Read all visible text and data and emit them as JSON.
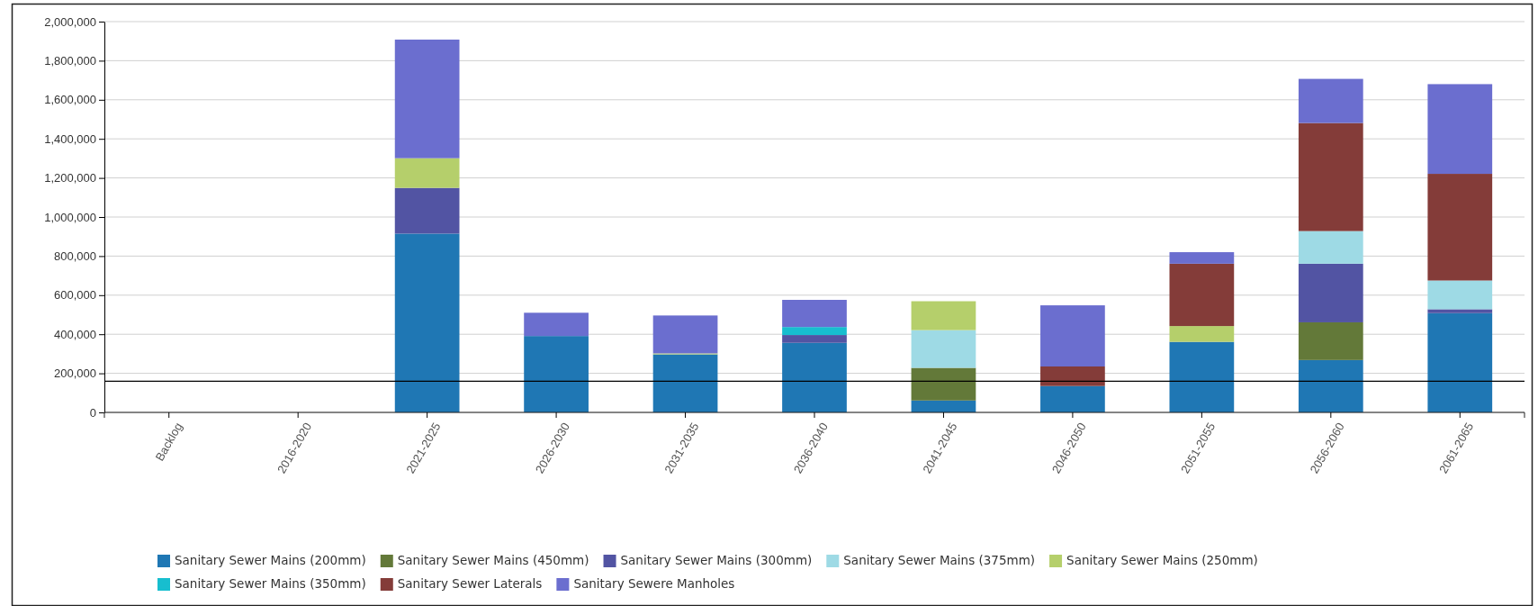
{
  "chart_data": {
    "type": "bar",
    "stacked": true,
    "categories": [
      "Backlog",
      "2016-2020",
      "2021-2025",
      "2026-2030",
      "2031-2035",
      "2036-2040",
      "2041-2045",
      "2046-2050",
      "2051-2055",
      "2056-2060",
      "2061-2065"
    ],
    "series": [
      {
        "name": "Sanitary Sewer Mains (200mm)",
        "color": "#1f77b4",
        "values": [
          0,
          0,
          915000,
          391000,
          297000,
          356000,
          61000,
          135000,
          361000,
          268000,
          508000
        ]
      },
      {
        "name": "Sanitary Sewer Mains (450mm)",
        "color": "#637939",
        "values": [
          0,
          0,
          0,
          0,
          0,
          0,
          167000,
          0,
          0,
          193000,
          0
        ]
      },
      {
        "name": "Sanitary Sewer Mains (300mm)",
        "color": "#5254a3",
        "values": [
          0,
          0,
          234000,
          0,
          0,
          40000,
          0,
          0,
          0,
          300000,
          20000
        ]
      },
      {
        "name": "Sanitary Sewer Mains (375mm)",
        "color": "#9edae5",
        "values": [
          0,
          0,
          0,
          0,
          0,
          0,
          193000,
          0,
          0,
          167000,
          147000
        ]
      },
      {
        "name": "Sanitary Sewer Mains (250mm)",
        "color": "#b5cf6b",
        "values": [
          0,
          0,
          152000,
          0,
          5000,
          0,
          148000,
          0,
          81000,
          0,
          0
        ]
      },
      {
        "name": "Sanitary Sewer Mains (350mm)",
        "color": "#17becf",
        "values": [
          0,
          0,
          0,
          0,
          0,
          41000,
          0,
          0,
          0,
          0,
          0
        ]
      },
      {
        "name": "Sanitary Sewer Laterals",
        "color": "#843c39",
        "values": [
          0,
          0,
          0,
          0,
          0,
          0,
          0,
          100000,
          319000,
          553000,
          546000
        ]
      },
      {
        "name": "Sanitary Sewere Manholes",
        "color": "#6b6ecf",
        "values": [
          0,
          0,
          607000,
          119000,
          194000,
          139000,
          0,
          313000,
          59000,
          226000,
          459000
        ]
      }
    ],
    "ylim": [
      0,
      2000000
    ],
    "yticks": [
      {
        "value": 0,
        "label": "0"
      },
      {
        "value": 200000,
        "label": "200,000"
      },
      {
        "value": 400000,
        "label": "400,000"
      },
      {
        "value": 600000,
        "label": "600,000"
      },
      {
        "value": 800000,
        "label": "800,000"
      },
      {
        "value": 1000000,
        "label": "1,000,000"
      },
      {
        "value": 1200000,
        "label": "1,200,000"
      },
      {
        "value": 1400000,
        "label": "1,400,000"
      },
      {
        "value": 1600000,
        "label": "1,600,000"
      },
      {
        "value": 1800000,
        "label": "1,800,000"
      },
      {
        "value": 2000000,
        "label": "2,000,000"
      }
    ],
    "grid": "y",
    "legend": "bottom",
    "ref_lines": [
      {
        "axis": "y",
        "value": 160000,
        "color": "#000000"
      }
    ]
  }
}
